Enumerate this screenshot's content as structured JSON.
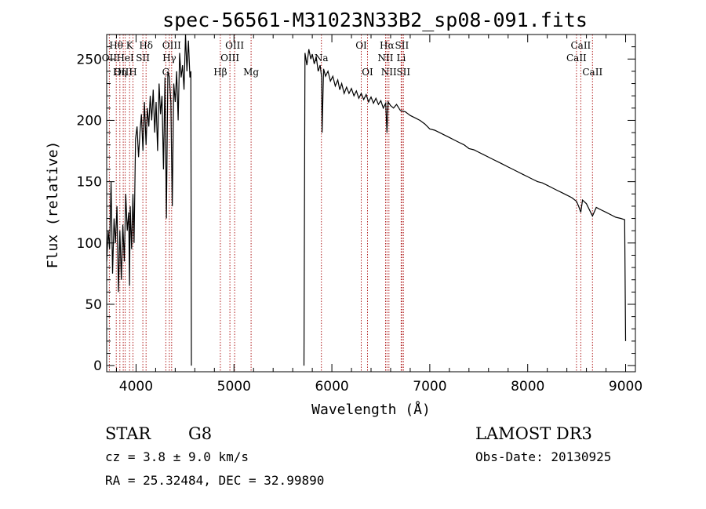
{
  "chart_data": {
    "type": "line",
    "title": "spec-56561-M31023N33B2_sp08-091.fits",
    "xlabel": "Wavelength (Å)",
    "ylabel": "Flux (relative)",
    "xlim": [
      3700,
      9100
    ],
    "ylim": [
      -5,
      270
    ],
    "x_ticks": [
      4000,
      5000,
      6000,
      7000,
      8000,
      9000
    ],
    "y_ticks": [
      0,
      50,
      100,
      150,
      200,
      250
    ],
    "gap": [
      4565,
      5715
    ],
    "series": [
      {
        "name": "spectrum",
        "segments": [
          {
            "x": [
              3700,
              3715,
              3730,
              3745,
              3760,
              3775,
              3790,
              3805,
              3820,
              3835,
              3850,
              3865,
              3880,
              3895,
              3910,
              3925,
              3933,
              3940,
              3955,
              3968,
              3980,
              3995,
              4010,
              4025,
              4040,
              4055,
              4070,
              4085,
              4102,
              4115,
              4130,
              4145,
              4160,
              4175,
              4190,
              4205,
              4220,
              4235,
              4250,
              4265,
              4280,
              4295,
              4310,
              4325,
              4340,
              4355,
              4370,
              4385,
              4400,
              4415,
              4430,
              4445,
              4460,
              4475,
              4490,
              4505,
              4520,
              4535,
              4550,
              4560,
              4565
            ],
            "y": [
              85,
              110,
              95,
              150,
              75,
              120,
              100,
              130,
              60,
              110,
              70,
              115,
              85,
              140,
              110,
              125,
              65,
              130,
              95,
              140,
              100,
              185,
              195,
              170,
              190,
              205,
              175,
              215,
              180,
              210,
              195,
              220,
              200,
              225,
              190,
              215,
              175,
              230,
              205,
              220,
              160,
              235,
              120,
              240,
              235,
              215,
              130,
              230,
              215,
              240,
              200,
              255,
              235,
              245,
              225,
              270,
              240,
              265,
              235,
              240,
              0
            ]
          },
          {
            "x": [
              5715,
              5725,
              5745,
              5765,
              5785,
              5800,
              5820,
              5840,
              5860,
              5880,
              5895,
              5900,
              5915,
              5935,
              5960,
              5985,
              6010,
              6035,
              6060,
              6080,
              6100,
              6125,
              6150,
              6175,
              6200,
              6225,
              6250,
              6275,
              6300,
              6325,
              6350,
              6375,
              6400,
              6425,
              6450,
              6475,
              6500,
              6525,
              6550,
              6563,
              6575,
              6600,
              6630,
              6660,
              6700,
              6750,
              6800,
              6850,
              6900,
              6950,
              7000,
              7050,
              7100,
              7150,
              7200,
              7250,
              7300,
              7350,
              7400,
              7450,
              7500,
              7550,
              7600,
              7650,
              7700,
              7750,
              7800,
              7850,
              7900,
              7950,
              8000,
              8050,
              8100,
              8150,
              8200,
              8250,
              8300,
              8350,
              8400,
              8450,
              8498,
              8520,
              8542,
              8560,
              8600,
              8662,
              8700,
              8750,
              8800,
              8850,
              8900,
              8950,
              8990,
              9000
            ],
            "y": [
              0,
              255,
              245,
              258,
              250,
              254,
              246,
              252,
              240,
              245,
              235,
              190,
              242,
              236,
              240,
              232,
              236,
              228,
              233,
              225,
              230,
              222,
              227,
              222,
              226,
              220,
              224,
              218,
              222,
              217,
              221,
              215,
              219,
              214,
              218,
              213,
              216,
              210,
              214,
              190,
              215,
              212,
              210,
              213,
              208,
              207,
              204,
              202,
              200,
              197,
              193,
              192,
              190,
              188,
              186,
              184,
              182,
              180,
              177,
              176,
              174,
              172,
              170,
              168,
              166,
              164,
              162,
              160,
              158,
              156,
              154,
              152,
              150,
              149,
              147,
              145,
              143,
              141,
              139,
              137,
              134,
              130,
              125,
              135,
              132,
              122,
              129,
              127,
              125,
              123,
              121,
              120,
              119,
              20
            ]
          }
        ]
      }
    ],
    "spectral_lines": [
      {
        "name": "Hθ",
        "wave": 3798,
        "row": 1
      },
      {
        "name": "OII",
        "wave": 3727,
        "row": 2
      },
      {
        "name": "OIII",
        "wave": 3869,
        "row": 3
      },
      {
        "name": "K",
        "wave": 3934,
        "row": 1
      },
      {
        "name": "HeI",
        "wave": 3889,
        "row": 2
      },
      {
        "name": "Hη",
        "wave": 3835,
        "row": 3
      },
      {
        "name": "SII",
        "wave": 4069,
        "row": 2
      },
      {
        "name": "H",
        "wave": 3968,
        "row": 3
      },
      {
        "name": "Hδ",
        "wave": 4102,
        "row": 1
      },
      {
        "name": "OIII",
        "wave": 4363,
        "row": 1
      },
      {
        "name": "Hγ",
        "wave": 4340,
        "row": 2
      },
      {
        "name": "G",
        "wave": 4304,
        "row": 3
      },
      {
        "name": "OIII",
        "wave": 5007,
        "row": 1
      },
      {
        "name": "OIII",
        "wave": 4959,
        "row": 2
      },
      {
        "name": "Hβ",
        "wave": 4861,
        "row": 3
      },
      {
        "name": "Mg",
        "wave": 5175,
        "row": 3
      },
      {
        "name": "Na",
        "wave": 5893,
        "row": 2
      },
      {
        "name": "OI",
        "wave": 6300,
        "row": 1
      },
      {
        "name": "OI",
        "wave": 6364,
        "row": 3
      },
      {
        "name": "Hα",
        "wave": 6563,
        "row": 1
      },
      {
        "name": "SII",
        "wave": 6716,
        "row": 1
      },
      {
        "name": "NII",
        "wave": 6548,
        "row": 2
      },
      {
        "name": "Li",
        "wave": 6708,
        "row": 2
      },
      {
        "name": "NII",
        "wave": 6583,
        "row": 3
      },
      {
        "name": "SII",
        "wave": 6731,
        "row": 3
      },
      {
        "name": "CaII",
        "wave": 8542,
        "row": 1
      },
      {
        "name": "CaII",
        "wave": 8498,
        "row": 2
      },
      {
        "name": "CaII",
        "wave": 8662,
        "row": 3
      }
    ]
  },
  "info": {
    "object_class": "STAR",
    "subclass": "G8",
    "survey": "LAMOST DR3",
    "cz": "cz = 3.8 ± 9.0 km/s",
    "obs_date": "Obs-Date: 20130925",
    "radec": "RA =  25.32484, DEC =  32.99890"
  },
  "colors": {
    "spectrum": "#000000",
    "line_markers": "#b22222",
    "axes": "#000000"
  }
}
